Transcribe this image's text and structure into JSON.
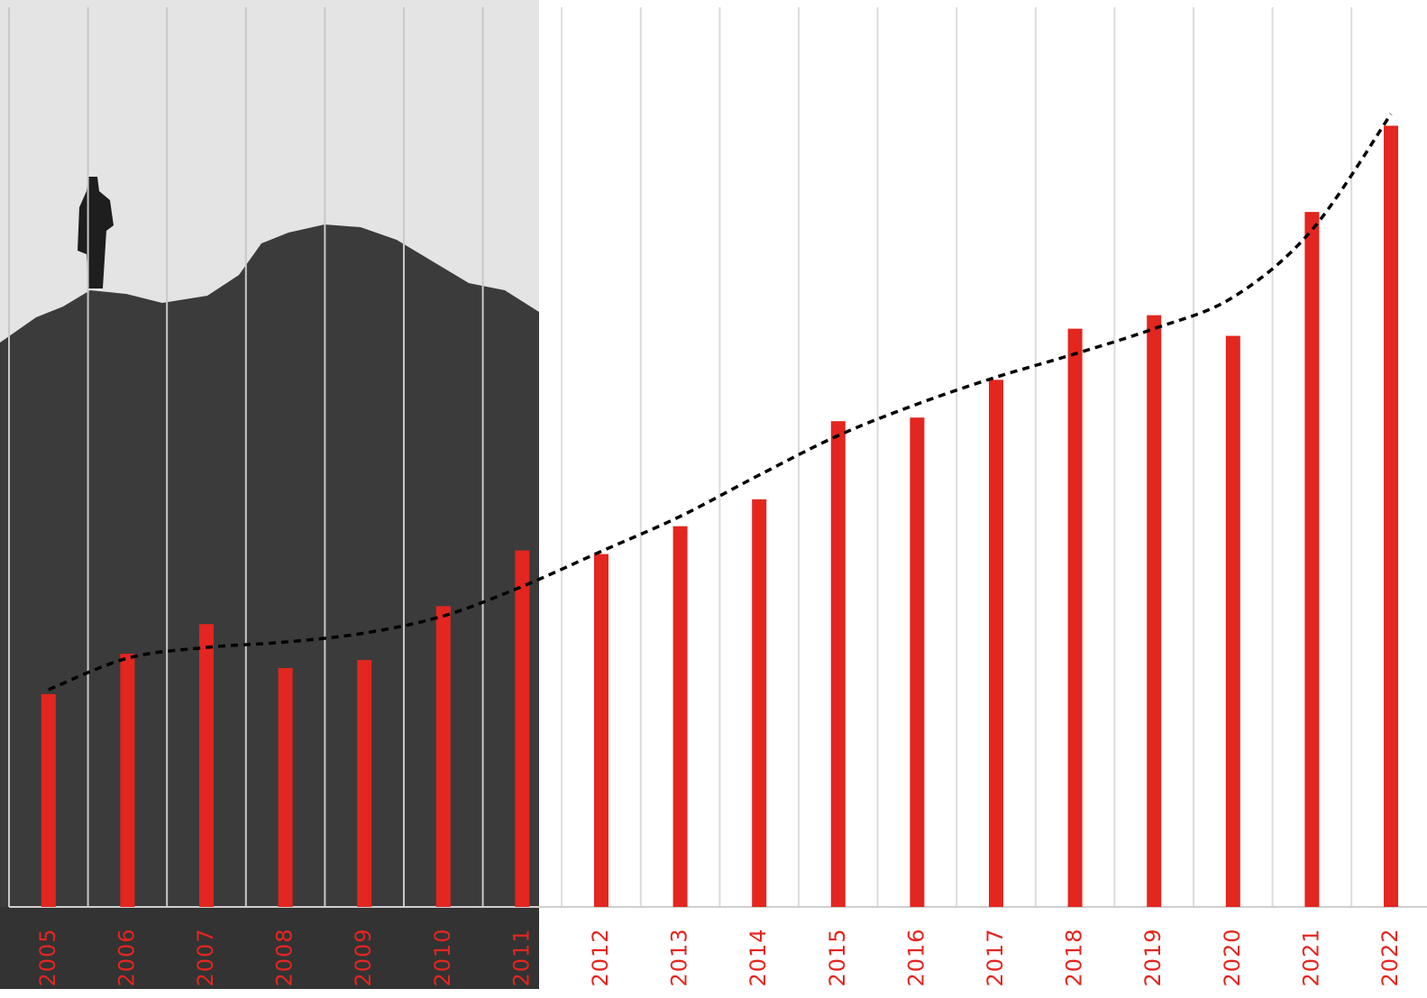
{
  "chart_data": {
    "type": "bar",
    "categories": [
      "2005",
      "2006",
      "2007",
      "2008",
      "2009",
      "2010",
      "2011",
      "2012",
      "2013",
      "2014",
      "2015",
      "2016",
      "2017",
      "2018",
      "2019",
      "2020",
      "2021",
      "2022"
    ],
    "values": [
      23.7,
      28.2,
      31.5,
      26.6,
      27.5,
      33.5,
      39.7,
      39.3,
      42.4,
      45.4,
      54.1,
      54.5,
      58.7,
      64.4,
      65.9,
      63.6,
      77.4,
      87.0
    ],
    "color": "#e3261f",
    "trend_values": [
      24.2,
      27.7,
      28.9,
      29.5,
      30.5,
      32.4,
      35.7,
      39.6,
      43.5,
      48.1,
      52.5,
      56.0,
      59.0,
      61.6,
      64.4,
      67.9,
      75.4,
      88.3
    ],
    "trend_color": "#000000",
    "ylim": [
      0,
      100
    ],
    "grid": true
  }
}
